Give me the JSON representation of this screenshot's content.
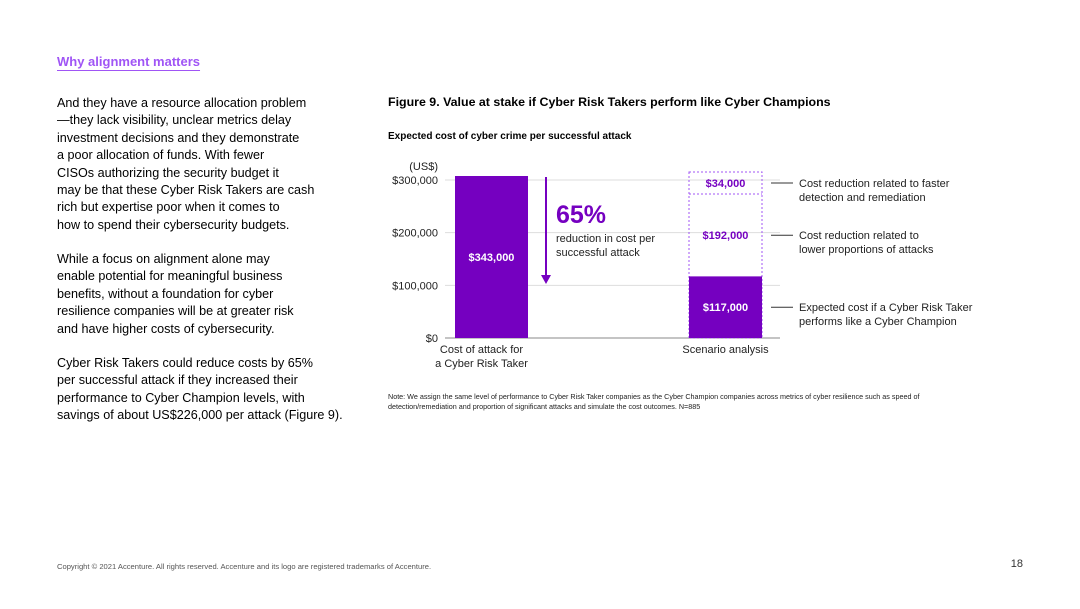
{
  "section_link": "Why alignment matters",
  "body_paragraphs": [
    [
      "And they have a resource allocation problem",
      "—they lack visibility, unclear metrics delay",
      "investment decisions and they demonstrate",
      "a poor allocation of funds. With fewer",
      "CISOs authorizing the security budget it",
      "may be that these Cyber Risk Takers are cash",
      "rich but expertise poor when it comes to",
      "how to spend their cybersecurity budgets."
    ],
    [
      "While a focus on alignment alone may",
      "enable potential for meaningful business",
      "benefits, without a foundation for cyber",
      "resilience companies will be at greater risk",
      "and have higher costs of cybersecurity."
    ],
    [
      "Cyber Risk Takers could reduce costs by 65%",
      "per successful attack if they increased their",
      "performance to Cyber Champion levels, with",
      "savings of about US$226,000 per attack (Figure 9)."
    ]
  ],
  "figure_title": "Figure 9. Value at stake if Cyber Risk Takers perform like Cyber Champions",
  "figure_subtitle": "Expected cost of cyber crime per successful attack",
  "note": "Note: We assign the same level of performance to Cyber Risk Taker companies as the Cyber Champion companies across metrics of cyber resilience such as speed of detection/remediation and proportion of significant attacks and simulate the cost outcomes. N=885",
  "footer": "Copyright © 2021 Accenture. All rights reserved. Accenture and its logo are registered trademarks of Accenture.",
  "page_number": "18",
  "colors": {
    "accent": "#7500c0",
    "link": "#a055f5",
    "dotted": "#a055f5"
  },
  "chart_data": {
    "type": "bar",
    "unit_label": "(US$)",
    "ylim": [
      0,
      300000
    ],
    "yticks": [
      {
        "value": 0,
        "label": "$0"
      },
      {
        "value": 100000,
        "label": "$100,000"
      },
      {
        "value": 200000,
        "label": "$200,000"
      },
      {
        "value": 300000,
        "label": "$300,000"
      }
    ],
    "grid": true,
    "categories": [
      {
        "lines": [
          "Cost of attack for",
          "a Cyber Risk Taker"
        ]
      },
      {
        "lines": [
          "Scenario analysis"
        ]
      }
    ],
    "bar1": {
      "value": 343000,
      "label": "$343,000"
    },
    "scenario_segments": [
      {
        "value": 117000,
        "label": "$117,000",
        "style": "solid",
        "annotation": [
          "Expected cost if a Cyber Risk Taker",
          "performs like a Cyber Champion"
        ]
      },
      {
        "value": 192000,
        "label": "$192,000",
        "style": "dotted",
        "annotation": [
          "Cost reduction related to",
          "lower proportions of attacks"
        ]
      },
      {
        "value": 34000,
        "label": "$34,000",
        "style": "dotted",
        "annotation": [
          "Cost reduction related to faster",
          "detection and remediation"
        ]
      }
    ],
    "reduction": {
      "value": "65%",
      "text": [
        "reduction in cost per",
        "successful attack"
      ]
    }
  }
}
